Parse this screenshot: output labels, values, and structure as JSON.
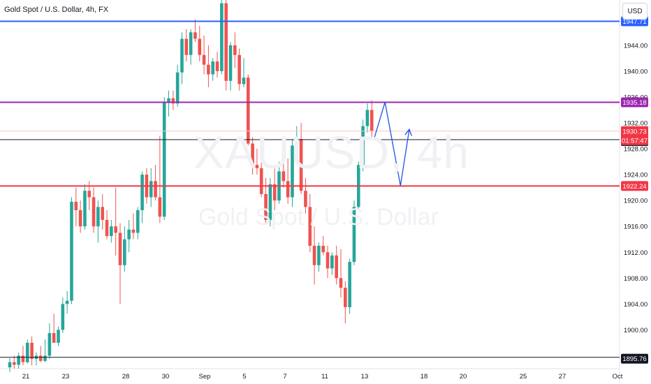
{
  "header": {
    "title": "Gold Spot / U.S. Dollar, 4h, FX",
    "currency": "USD"
  },
  "watermark": {
    "symbol": "XAUUSD, 4h",
    "name": "Gold Spot / U.S. Dollar"
  },
  "countdown": "01:57:47",
  "colors": {
    "up": "#26a69a",
    "down": "#ef5350",
    "blue_line": "#2962ff",
    "purple_line": "#9c27b0",
    "red_line": "#f23645",
    "black_line": "#131722",
    "arrow": "#1e53e5",
    "current_price": "#f23645"
  },
  "chart_data": {
    "type": "candlestick",
    "symbol": "XAUUSD",
    "timeframe": "4h",
    "ylim": [
      1894,
      1951
    ],
    "y_ticks": [
      1900.0,
      1904.0,
      1908.0,
      1912.0,
      1916.0,
      1920.0,
      1924.0,
      1928.0,
      1932.0,
      1936.0,
      1940.0,
      1944.0
    ],
    "x_ticks": [
      "21",
      "23",
      "28",
      "30",
      "Sep",
      "5",
      "7",
      "11",
      "13",
      "18",
      "20",
      "25",
      "27",
      "Oct"
    ],
    "horizontal_levels": [
      {
        "price": 1947.71,
        "label": "1947.71",
        "color": "blue_line"
      },
      {
        "price": 1935.18,
        "label": "1935.18",
        "color": "purple_line"
      },
      {
        "price": 1929.41,
        "label": "1929.41",
        "color": "black_line"
      },
      {
        "price": 1922.24,
        "label": "1922.24",
        "color": "red_line"
      },
      {
        "price": 1895.76,
        "label": "1895.76",
        "color": "black_line"
      }
    ],
    "current_price": {
      "price": 1930.73,
      "label": "1930.73"
    },
    "projection_path": [
      {
        "bar": 82.5,
        "price": 1929.5
      },
      {
        "bar": 85,
        "price": 1935.2
      },
      {
        "bar": 88.5,
        "price": 1922.3
      },
      {
        "bar": 90.5,
        "price": 1931.0
      }
    ],
    "candles": [
      [
        1894.2,
        1895.6,
        1893.5,
        1895.0
      ],
      [
        1895.0,
        1896.0,
        1894.0,
        1894.6
      ],
      [
        1894.6,
        1896.5,
        1894.0,
        1896.0
      ],
      [
        1896.0,
        1897.5,
        1894.5,
        1895.0
      ],
      [
        1895.0,
        1898.5,
        1894.8,
        1898.0
      ],
      [
        1898.0,
        1899.0,
        1894.5,
        1895.5
      ],
      [
        1895.5,
        1896.5,
        1894.5,
        1896.0
      ],
      [
        1896.0,
        1897.5,
        1895.0,
        1895.2
      ],
      [
        1895.2,
        1898.5,
        1895.0,
        1896.0
      ],
      [
        1896.0,
        1901.0,
        1895.5,
        1899.5
      ],
      [
        1899.5,
        1902.5,
        1898.5,
        1898.0
      ],
      [
        1898.0,
        1900.5,
        1897.5,
        1900.0
      ],
      [
        1900.0,
        1905.0,
        1899.5,
        1904.0
      ],
      [
        1904.0,
        1906.0,
        1902.5,
        1904.5
      ],
      [
        1904.5,
        1920.5,
        1904.0,
        1919.8
      ],
      [
        1919.8,
        1922.0,
        1916.0,
        1918.5
      ],
      [
        1918.5,
        1920.0,
        1915.0,
        1916.0
      ],
      [
        1916.0,
        1922.5,
        1915.5,
        1921.5
      ],
      [
        1921.5,
        1923.0,
        1918.5,
        1920.5
      ],
      [
        1920.5,
        1922.0,
        1915.0,
        1916.0
      ],
      [
        1916.0,
        1920.0,
        1913.5,
        1919.0
      ],
      [
        1919.0,
        1921.0,
        1915.5,
        1917.0
      ],
      [
        1917.0,
        1918.5,
        1914.0,
        1914.5
      ],
      [
        1914.5,
        1917.0,
        1913.5,
        1916.0
      ],
      [
        1916.0,
        1922.0,
        1911.5,
        1915.0
      ],
      [
        1915.0,
        1916.5,
        1904.0,
        1910.0
      ],
      [
        1910.0,
        1916.0,
        1909.0,
        1914.0
      ],
      [
        1914.0,
        1917.0,
        1912.0,
        1915.5
      ],
      [
        1915.5,
        1918.0,
        1914.0,
        1915.0
      ],
      [
        1915.0,
        1919.0,
        1914.0,
        1918.5
      ],
      [
        1918.5,
        1924.5,
        1916.5,
        1924.0
      ],
      [
        1924.0,
        1925.0,
        1919.5,
        1920.5
      ],
      [
        1920.5,
        1925.0,
        1919.0,
        1923.0
      ],
      [
        1923.0,
        1925.5,
        1920.0,
        1920.5
      ],
      [
        1920.5,
        1930.0,
        1916.5,
        1917.5
      ],
      [
        1917.5,
        1936.0,
        1917.0,
        1935.2
      ],
      [
        1935.2,
        1937.0,
        1933.0,
        1935.8
      ],
      [
        1935.8,
        1937.0,
        1934.0,
        1935.0
      ],
      [
        1935.0,
        1941.0,
        1934.5,
        1939.8
      ],
      [
        1939.8,
        1946.0,
        1938.0,
        1945.0
      ],
      [
        1945.0,
        1946.5,
        1941.5,
        1942.5
      ],
      [
        1942.5,
        1946.5,
        1941.0,
        1946.0
      ],
      [
        1946.0,
        1948.0,
        1944.5,
        1945.0
      ],
      [
        1945.0,
        1947.0,
        1941.5,
        1942.5
      ],
      [
        1942.5,
        1945.5,
        1939.5,
        1941.0
      ],
      [
        1941.0,
        1944.0,
        1937.5,
        1939.5
      ],
      [
        1939.5,
        1942.0,
        1938.5,
        1941.5
      ],
      [
        1941.5,
        1943.0,
        1939.0,
        1940.0
      ],
      [
        1940.0,
        1951.0,
        1939.5,
        1950.5
      ],
      [
        1950.5,
        1951.0,
        1937.0,
        1938.5
      ],
      [
        1938.5,
        1944.5,
        1937.0,
        1944.0
      ],
      [
        1944.0,
        1946.0,
        1940.5,
        1942.5
      ],
      [
        1942.5,
        1943.5,
        1937.0,
        1938.0
      ],
      [
        1938.0,
        1942.0,
        1937.5,
        1939.0
      ],
      [
        1939.0,
        1939.5,
        1928.5,
        1928.8
      ],
      [
        1928.8,
        1929.8,
        1924.0,
        1925.5
      ],
      [
        1925.5,
        1928.0,
        1924.0,
        1925.0
      ],
      [
        1925.0,
        1926.0,
        1920.5,
        1921.0
      ],
      [
        1921.0,
        1923.5,
        1916.5,
        1917.0
      ],
      [
        1917.0,
        1923.5,
        1916.0,
        1922.5
      ],
      [
        1922.5,
        1925.0,
        1918.5,
        1920.0
      ],
      [
        1920.0,
        1926.0,
        1919.5,
        1924.5
      ],
      [
        1924.5,
        1927.5,
        1922.0,
        1923.0
      ],
      [
        1923.0,
        1926.5,
        1919.5,
        1920.5
      ],
      [
        1920.5,
        1929.5,
        1919.0,
        1928.5
      ],
      [
        1928.5,
        1931.5,
        1927.0,
        1929.5
      ],
      [
        1929.5,
        1932.0,
        1921.0,
        1921.5
      ],
      [
        1921.5,
        1923.5,
        1918.0,
        1919.0
      ],
      [
        1919.0,
        1921.0,
        1912.0,
        1913.0
      ],
      [
        1913.0,
        1916.0,
        1907.0,
        1910.0
      ],
      [
        1910.0,
        1913.5,
        1909.0,
        1913.0
      ],
      [
        1913.0,
        1914.5,
        1911.5,
        1912.0
      ],
      [
        1912.0,
        1913.0,
        1908.0,
        1909.5
      ],
      [
        1909.5,
        1912.0,
        1908.5,
        1911.5
      ],
      [
        1911.5,
        1913.0,
        1907.0,
        1908.0
      ],
      [
        1908.0,
        1912.5,
        1905.0,
        1906.5
      ],
      [
        1906.5,
        1907.5,
        1901.0,
        1903.5
      ],
      [
        1903.5,
        1911.0,
        1902.5,
        1910.5
      ],
      [
        1910.5,
        1920.0,
        1910.0,
        1919.0
      ],
      [
        1919.0,
        1926.0,
        1918.5,
        1925.5
      ],
      [
        1925.5,
        1932.5,
        1924.5,
        1931.5
      ],
      [
        1931.5,
        1935.0,
        1930.5,
        1934.0
      ],
      [
        1934.0,
        1935.5,
        1929.5,
        1930.7
      ]
    ],
    "grid": false
  }
}
